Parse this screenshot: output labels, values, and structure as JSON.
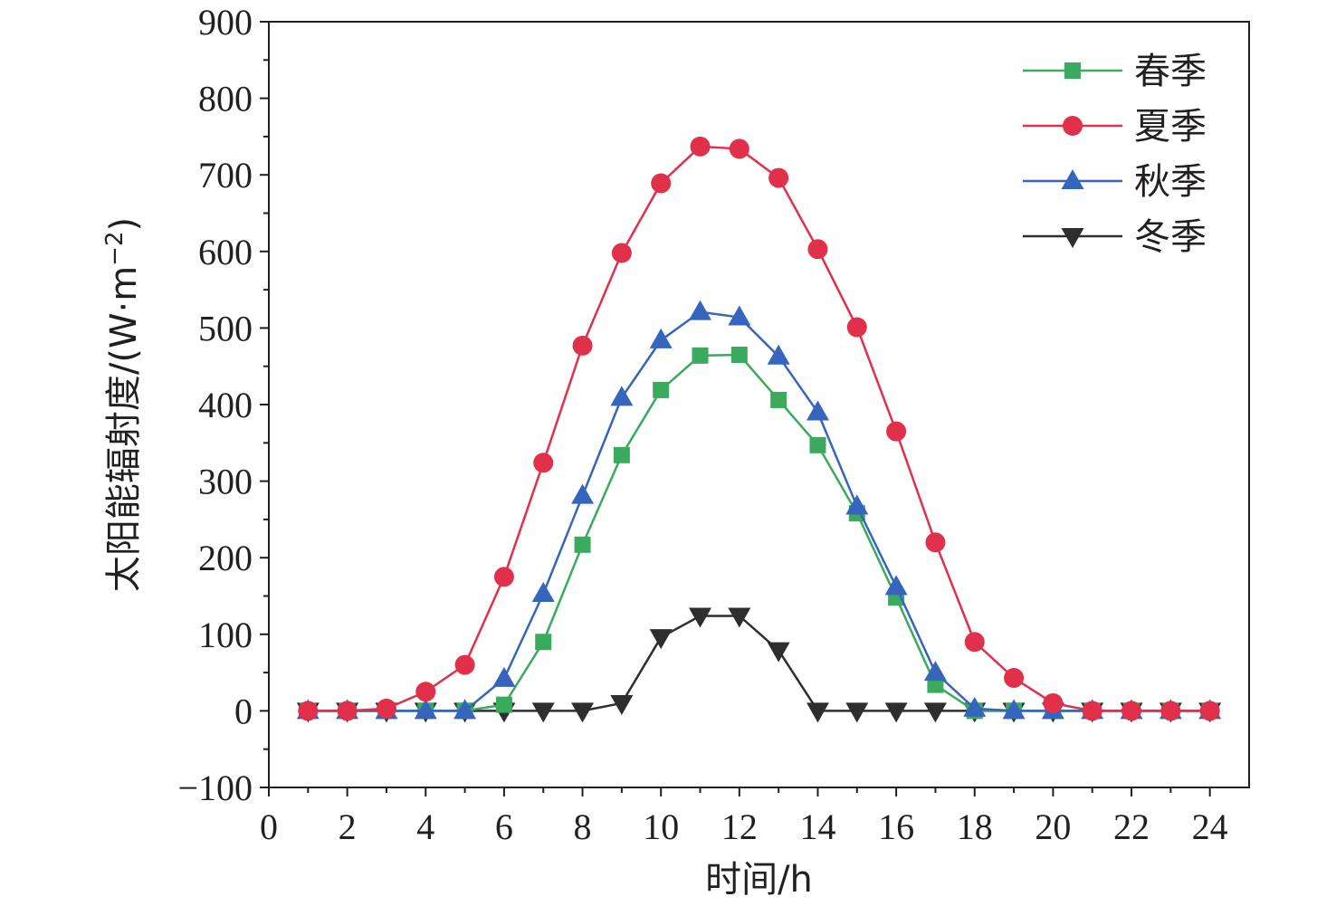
{
  "chart_data": {
    "type": "line",
    "title": "",
    "xlabel": "时间/h",
    "ylabel": "太阳能辐射度/(W·m",
    "ylabel_superscript": "−2",
    "ylabel_close": ")",
    "xlim": [
      0,
      25
    ],
    "ylim": [
      -100,
      900
    ],
    "xticks": [
      0,
      2,
      4,
      6,
      8,
      10,
      12,
      14,
      16,
      18,
      20,
      22,
      24
    ],
    "yticks": [
      -100,
      0,
      100,
      200,
      300,
      400,
      500,
      600,
      700,
      800,
      900
    ],
    "ytick_labels": [
      "−100",
      "0",
      "100",
      "200",
      "300",
      "400",
      "500",
      "600",
      "700",
      "800",
      "900"
    ],
    "grid": false,
    "legend_position": "top-right",
    "x": [
      1,
      2,
      3,
      4,
      5,
      6,
      7,
      8,
      9,
      10,
      11,
      12,
      13,
      14,
      15,
      16,
      17,
      18,
      19,
      20,
      21,
      22,
      23,
      24
    ],
    "series": [
      {
        "name": "春季",
        "color": "#3aaa5f",
        "marker": "square",
        "values": [
          0,
          0,
          0,
          0,
          0,
          8,
          90,
          217,
          334,
          419,
          464,
          465,
          406,
          347,
          258,
          148,
          34,
          0,
          0,
          0,
          0,
          0,
          0,
          0
        ]
      },
      {
        "name": "夏季",
        "color": "#e0304a",
        "marker": "circle",
        "values": [
          0,
          0,
          3,
          25,
          60,
          175,
          324,
          477,
          598,
          689,
          737,
          734,
          696,
          603,
          501,
          365,
          220,
          90,
          43,
          10,
          0,
          0,
          0,
          0
        ]
      },
      {
        "name": "秋季",
        "color": "#3565bd",
        "marker": "triangle-up",
        "values": [
          0,
          0,
          0,
          0,
          0,
          42,
          153,
          281,
          409,
          484,
          521,
          514,
          463,
          390,
          267,
          162,
          50,
          3,
          0,
          0,
          0,
          0,
          0,
          0
        ]
      },
      {
        "name": "冬季",
        "color": "#2e2e2e",
        "marker": "triangle-down",
        "values": [
          0,
          0,
          0,
          0,
          0,
          0,
          0,
          0,
          10,
          96,
          124,
          124,
          79,
          0,
          0,
          0,
          0,
          0,
          0,
          0,
          0,
          0,
          0,
          0
        ]
      }
    ]
  }
}
